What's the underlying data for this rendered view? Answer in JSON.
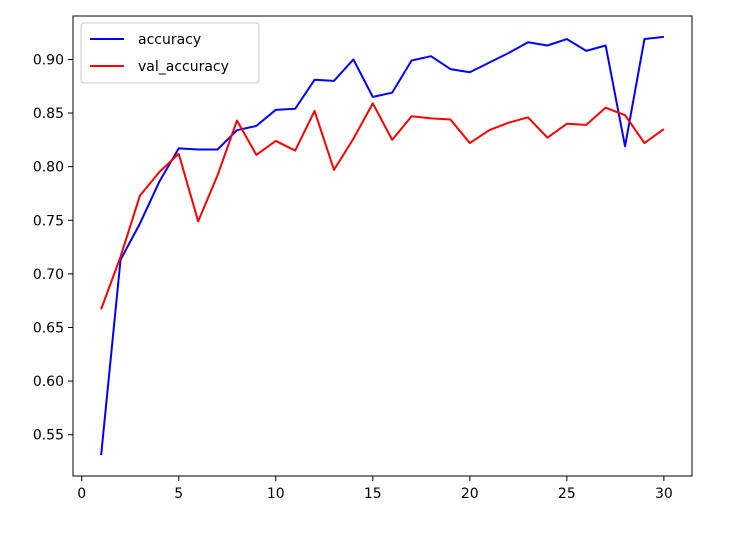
{
  "chart_data": {
    "type": "line",
    "title": "",
    "xlabel": "",
    "ylabel": "",
    "xlim": [
      -0.45,
      31.45
    ],
    "ylim": [
      0.5115,
      0.9405
    ],
    "xticks": [
      0,
      5,
      10,
      15,
      20,
      25,
      30
    ],
    "yticks": [
      0.55,
      0.6,
      0.65,
      0.7,
      0.75,
      0.8,
      0.85,
      0.9
    ],
    "grid": false,
    "legend": {
      "placement": "top-left",
      "entries": [
        "accuracy",
        "val_accuracy"
      ]
    },
    "x": [
      1,
      2,
      3,
      4,
      5,
      6,
      7,
      8,
      9,
      10,
      11,
      12,
      13,
      14,
      15,
      16,
      17,
      18,
      19,
      20,
      21,
      22,
      23,
      24,
      25,
      26,
      27,
      28,
      29,
      30
    ],
    "series": [
      {
        "name": "accuracy",
        "color": "#0000ff",
        "values": [
          0.531,
          0.713,
          0.747,
          0.786,
          0.817,
          0.816,
          0.816,
          0.834,
          0.838,
          0.853,
          0.854,
          0.881,
          0.88,
          0.9,
          0.865,
          0.869,
          0.899,
          0.903,
          0.891,
          0.888,
          0.897,
          0.906,
          0.916,
          0.913,
          0.919,
          0.908,
          0.913,
          0.819,
          0.919,
          0.921
        ]
      },
      {
        "name": "val_accuracy",
        "color": "#ff0000",
        "values": [
          0.667,
          0.716,
          0.773,
          0.795,
          0.812,
          0.749,
          0.792,
          0.843,
          0.811,
          0.824,
          0.815,
          0.852,
          0.797,
          0.826,
          0.859,
          0.825,
          0.847,
          0.845,
          0.844,
          0.822,
          0.834,
          0.841,
          0.846,
          0.827,
          0.84,
          0.839,
          0.855,
          0.848,
          0.822,
          0.835
        ]
      }
    ]
  }
}
